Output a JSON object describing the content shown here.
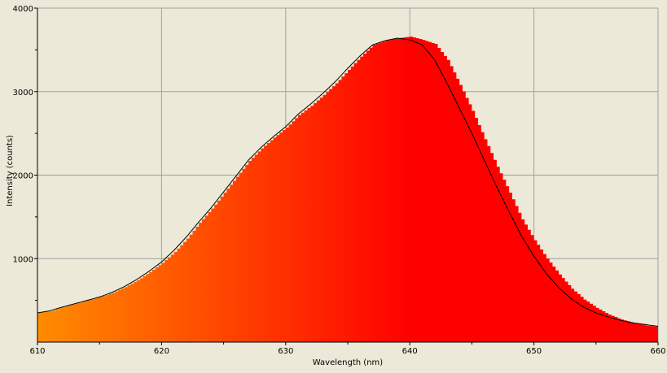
{
  "chart_data": {
    "type": "area",
    "xlabel": "Wavelength (nm)",
    "ylabel": "Intensity (counts)",
    "xlim": [
      610,
      660
    ],
    "ylim": [
      0,
      4000
    ],
    "x_ticks": [
      {
        "value": 610,
        "label": "610"
      },
      {
        "value": 620,
        "label": "620"
      },
      {
        "value": 630,
        "label": "630"
      },
      {
        "value": 640,
        "label": "640"
      },
      {
        "value": 650,
        "label": "650"
      },
      {
        "value": 660,
        "label": "660"
      }
    ],
    "y_ticks": [
      {
        "value": 1000,
        "label": "1000"
      },
      {
        "value": 2000,
        "label": "2000"
      },
      {
        "value": 3000,
        "label": "3000"
      },
      {
        "value": 4000,
        "label": "4000"
      }
    ],
    "grid": true,
    "fill_gradient": [
      "#FF8C00",
      "#FF0000"
    ],
    "series": [
      {
        "style": "filled-histogram",
        "points": [
          [
            610,
            350
          ],
          [
            611,
            370
          ],
          [
            612,
            420
          ],
          [
            613,
            460
          ],
          [
            614,
            500
          ],
          [
            615,
            540
          ],
          [
            616,
            590
          ],
          [
            617,
            660
          ],
          [
            618,
            740
          ],
          [
            619,
            840
          ],
          [
            620,
            950
          ],
          [
            621,
            1080
          ],
          [
            622,
            1240
          ],
          [
            623,
            1430
          ],
          [
            624,
            1600
          ],
          [
            625,
            1790
          ],
          [
            626,
            1980
          ],
          [
            627,
            2170
          ],
          [
            628,
            2320
          ],
          [
            629,
            2450
          ],
          [
            630,
            2570
          ],
          [
            631,
            2720
          ],
          [
            632,
            2830
          ],
          [
            633,
            2960
          ],
          [
            634,
            3100
          ],
          [
            635,
            3260
          ],
          [
            636,
            3420
          ],
          [
            637,
            3560
          ],
          [
            638,
            3610
          ],
          [
            639,
            3640
          ],
          [
            640,
            3660
          ],
          [
            641,
            3620
          ],
          [
            642,
            3570
          ],
          [
            643,
            3380
          ],
          [
            644,
            3080
          ],
          [
            645,
            2770
          ],
          [
            646,
            2430
          ],
          [
            647,
            2100
          ],
          [
            648,
            1790
          ],
          [
            649,
            1470
          ],
          [
            650,
            1220
          ],
          [
            651,
            1000
          ],
          [
            652,
            810
          ],
          [
            653,
            640
          ],
          [
            654,
            510
          ],
          [
            655,
            410
          ],
          [
            656,
            330
          ],
          [
            657,
            270
          ],
          [
            658,
            230
          ],
          [
            659,
            200
          ],
          [
            660,
            180
          ]
        ]
      },
      {
        "style": "line",
        "color": "#000000",
        "points": [
          [
            610,
            350
          ],
          [
            611,
            375
          ],
          [
            612,
            420
          ],
          [
            613,
            460
          ],
          [
            614,
            500
          ],
          [
            615,
            540
          ],
          [
            616,
            595
          ],
          [
            617,
            665
          ],
          [
            618,
            750
          ],
          [
            619,
            850
          ],
          [
            620,
            960
          ],
          [
            621,
            1100
          ],
          [
            622,
            1260
          ],
          [
            623,
            1440
          ],
          [
            624,
            1610
          ],
          [
            625,
            1800
          ],
          [
            626,
            1990
          ],
          [
            627,
            2180
          ],
          [
            628,
            2330
          ],
          [
            629,
            2460
          ],
          [
            630,
            2580
          ],
          [
            631,
            2730
          ],
          [
            632,
            2850
          ],
          [
            633,
            2980
          ],
          [
            634,
            3120
          ],
          [
            635,
            3280
          ],
          [
            636,
            3430
          ],
          [
            637,
            3560
          ],
          [
            638,
            3610
          ],
          [
            639,
            3640
          ],
          [
            640,
            3620
          ],
          [
            641,
            3560
          ],
          [
            642,
            3380
          ],
          [
            643,
            3100
          ],
          [
            644,
            2800
          ],
          [
            645,
            2500
          ],
          [
            646,
            2180
          ],
          [
            647,
            1860
          ],
          [
            648,
            1560
          ],
          [
            649,
            1270
          ],
          [
            650,
            1030
          ],
          [
            651,
            820
          ],
          [
            652,
            650
          ],
          [
            653,
            520
          ],
          [
            654,
            420
          ],
          [
            655,
            350
          ],
          [
            656,
            300
          ],
          [
            657,
            260
          ],
          [
            658,
            230
          ],
          [
            659,
            210
          ],
          [
            660,
            190
          ]
        ]
      }
    ]
  }
}
